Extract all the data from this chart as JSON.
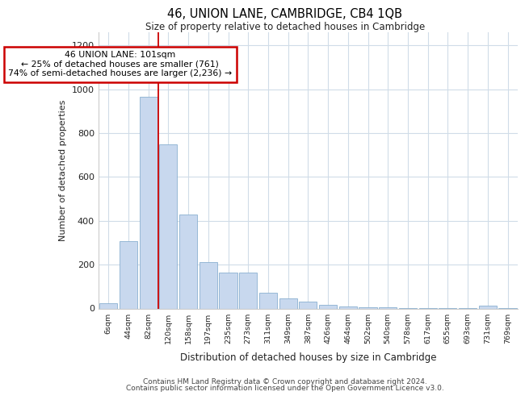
{
  "title": "46, UNION LANE, CAMBRIDGE, CB4 1QB",
  "subtitle": "Size of property relative to detached houses in Cambridge",
  "xlabel": "Distribution of detached houses by size in Cambridge",
  "ylabel": "Number of detached properties",
  "footer1": "Contains HM Land Registry data © Crown copyright and database right 2024.",
  "footer2": "Contains public sector information licensed under the Open Government Licence v3.0.",
  "annotation_line1": "46 UNION LANE: 101sqm",
  "annotation_line2": "← 25% of detached houses are smaller (761)",
  "annotation_line3": "74% of semi-detached houses are larger (2,236) →",
  "bar_color": "#c8d8ee",
  "bar_edge_color": "#8ab0d0",
  "grid_color": "#d0dce8",
  "background_color": "#ffffff",
  "vline_color": "#cc0000",
  "categories": [
    "6sqm",
    "44sqm",
    "82sqm",
    "120sqm",
    "158sqm",
    "197sqm",
    "235sqm",
    "273sqm",
    "311sqm",
    "349sqm",
    "387sqm",
    "426sqm",
    "464sqm",
    "502sqm",
    "540sqm",
    "578sqm",
    "617sqm",
    "655sqm",
    "693sqm",
    "731sqm",
    "769sqm"
  ],
  "values": [
    25,
    308,
    965,
    748,
    428,
    212,
    165,
    165,
    72,
    47,
    33,
    18,
    10,
    5,
    4,
    3,
    2,
    1,
    1,
    12,
    1
  ],
  "ylim": [
    0,
    1260
  ],
  "yticks": [
    0,
    200,
    400,
    600,
    800,
    1000,
    1200
  ]
}
